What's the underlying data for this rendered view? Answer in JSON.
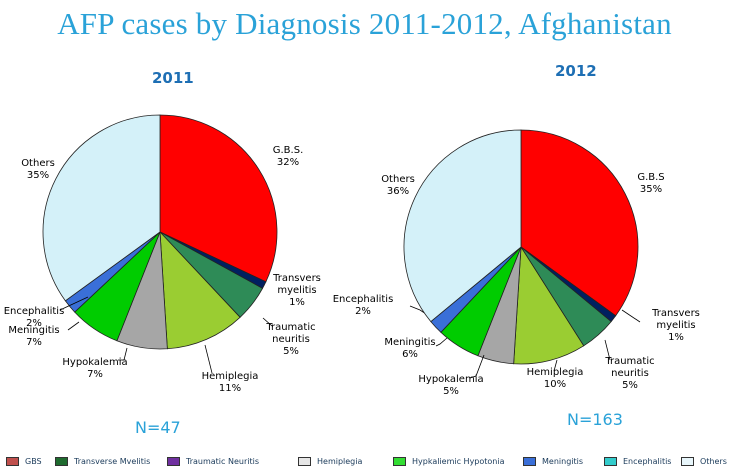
{
  "title": "AFP cases by Diagnosis 2011-2012, Afghanistan",
  "chart_data": [
    {
      "type": "pie",
      "title": "2011",
      "annotation": "N=47",
      "slices": [
        {
          "label": [
            "G.B.S.",
            "32%"
          ],
          "value": 32,
          "color": "#ff0000"
        },
        {
          "label": [
            "Transvers",
            "myelitis",
            "1%"
          ],
          "value": 1,
          "color": "#002060"
        },
        {
          "label": [
            "Traumatic",
            "neuritis",
            "5%"
          ],
          "value": 5,
          "color": "#2e8b57"
        },
        {
          "label": [
            "Hemiplegia",
            "11%"
          ],
          "value": 11,
          "color": "#9acd32"
        },
        {
          "label": [
            "Hypokalemia",
            "7%"
          ],
          "value": 7,
          "color": "#a6a6a6"
        },
        {
          "label": [
            "Meningitis",
            "7%"
          ],
          "value": 7,
          "color": "#00cc00"
        },
        {
          "label": [
            "Encephalitis",
            "2%"
          ],
          "value": 2,
          "color": "#3a6fd8"
        },
        {
          "label": [
            "Others",
            "35%"
          ],
          "value": 35,
          "color": "#d4f1f9"
        }
      ]
    },
    {
      "type": "pie",
      "title": "2012",
      "annotation": "N=163",
      "slices": [
        {
          "label": [
            "G.B.S",
            "35%"
          ],
          "value": 35,
          "color": "#ff0000"
        },
        {
          "label": [
            "Transvers",
            "myelitis",
            "1%"
          ],
          "value": 1,
          "color": "#002060"
        },
        {
          "label": [
            "Traumatic",
            "neuritis",
            "5%"
          ],
          "value": 5,
          "color": "#2e8b57"
        },
        {
          "label": [
            "Hemiplegia",
            "10%"
          ],
          "value": 10,
          "color": "#9acd32"
        },
        {
          "label": [
            "Hypokalemia",
            "5%"
          ],
          "value": 5,
          "color": "#a6a6a6"
        },
        {
          "label": [
            "Meningitis",
            "6%"
          ],
          "value": 6,
          "color": "#00cc00"
        },
        {
          "label": [
            "Encephalitis",
            "2%"
          ],
          "value": 2,
          "color": "#3a6fd8"
        },
        {
          "label": [
            "Others",
            "36%"
          ],
          "value": 36,
          "color": "#d4f1f9"
        }
      ]
    }
  ],
  "legend": [
    {
      "label": "GBS",
      "color": "#c0504d"
    },
    {
      "label": "Transverse Mvelitis",
      "color": "#1f6b2f"
    },
    {
      "label": "Traumatic Neuritis",
      "color": "#7030a0"
    },
    {
      "label": "Hemiplegia",
      "color": "#e6e6e6"
    },
    {
      "label": "Hypkaliemic Hypotonia",
      "color": "#33dd33"
    },
    {
      "label": "Meningitis",
      "color": "#3a6fd8"
    },
    {
      "label": "Encephalitis",
      "color": "#33cccc"
    },
    {
      "label": "Others",
      "color": "#e8f6fb"
    }
  ]
}
